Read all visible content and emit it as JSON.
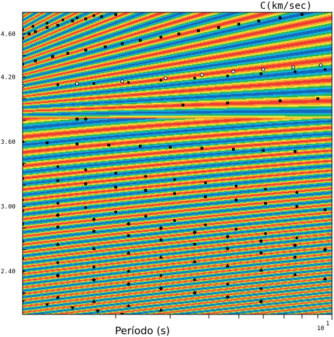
{
  "chart_data": {
    "type": "heatmap",
    "title": "",
    "xlabel": "Período (s)",
    "ylabel": "C(km/sec)",
    "x_scale": "log",
    "xlim": [
      1,
      10
    ],
    "x_tick_labels": [
      {
        "value": 10,
        "label": "10",
        "exponent": "1"
      }
    ],
    "ylim": [
      2.0,
      4.8
    ],
    "y_ticks": [
      2.4,
      3.0,
      3.6,
      4.2,
      4.6
    ],
    "y_tick_labels": [
      "2.40",
      "3.00",
      "3.60",
      "4.20",
      "4.60"
    ],
    "grid": false,
    "colors": {
      "red": "#f03a32",
      "orange": "#f59a2a",
      "yellow": "#f0e640",
      "green": "#27b44b",
      "cyan": "#13b5e8",
      "blue": "#1469b8"
    },
    "marker_series": [
      {
        "marker": "square",
        "points": [
          [
            1.0,
            4.56
          ],
          [
            1.05,
            4.6
          ],
          [
            1.1,
            4.62
          ],
          [
            1.2,
            4.66
          ],
          [
            1.3,
            4.68
          ],
          [
            1.45,
            4.72
          ],
          [
            1.6,
            4.74
          ],
          [
            1.8,
            4.76
          ],
          [
            2.0,
            4.78
          ],
          [
            1.0,
            4.32
          ],
          [
            1.1,
            4.35
          ],
          [
            1.25,
            4.39
          ],
          [
            1.4,
            4.42
          ],
          [
            1.6,
            4.45
          ],
          [
            1.85,
            4.48
          ],
          [
            2.1,
            4.51
          ],
          [
            2.4,
            4.54
          ],
          [
            2.8,
            4.57
          ],
          [
            3.2,
            4.6
          ],
          [
            3.7,
            4.63
          ],
          [
            4.3,
            4.66
          ],
          [
            5.0,
            4.69
          ],
          [
            5.8,
            4.72
          ],
          [
            6.8,
            4.75
          ],
          [
            8.0,
            4.78
          ],
          [
            3.3,
            3.94
          ],
          [
            4.6,
            3.96
          ],
          [
            6.8,
            3.98
          ],
          [
            9.0,
            4.0
          ],
          [
            1.0,
            3.6
          ],
          [
            1.2,
            3.59
          ],
          [
            1.5,
            3.58
          ],
          [
            1.9,
            3.57
          ],
          [
            2.4,
            3.56
          ],
          [
            3.0,
            3.55
          ],
          [
            3.8,
            3.54
          ],
          [
            4.8,
            3.53
          ],
          [
            6.0,
            3.52
          ],
          [
            7.6,
            3.51
          ],
          [
            1.0,
            3.26
          ],
          [
            1.3,
            3.24
          ],
          [
            1.6,
            3.21
          ],
          [
            2.0,
            3.18
          ],
          [
            2.5,
            3.15
          ],
          [
            3.1,
            3.12
          ],
          [
            3.9,
            3.09
          ],
          [
            4.9,
            3.06
          ],
          [
            6.1,
            3.03
          ],
          [
            7.7,
            3.0
          ],
          [
            9.5,
            2.97
          ],
          [
            1.0,
            2.84
          ],
          [
            1.3,
            2.81
          ],
          [
            1.7,
            2.77
          ],
          [
            2.2,
            2.73
          ],
          [
            2.8,
            2.69
          ],
          [
            3.6,
            2.65
          ],
          [
            4.6,
            2.61
          ],
          [
            5.9,
            2.57
          ],
          [
            7.6,
            2.53
          ]
        ]
      },
      {
        "marker": "circle",
        "points": [
          [
            1.0,
            4.64
          ],
          [
            1.08,
            4.67
          ],
          [
            1.2,
            4.7
          ],
          [
            1.35,
            4.73
          ],
          [
            1.5,
            4.75
          ],
          [
            1.7,
            4.77
          ],
          [
            1.0,
            4.12
          ],
          [
            1.3,
            4.13
          ],
          [
            1.7,
            4.14
          ],
          [
            2.2,
            4.15
          ],
          [
            2.8,
            4.17
          ],
          [
            3.6,
            4.19
          ],
          [
            4.6,
            4.21
          ],
          [
            5.9,
            4.23
          ],
          [
            7.6,
            4.25
          ],
          [
            9.5,
            4.27
          ],
          [
            1.0,
            3.39
          ],
          [
            1.3,
            3.37
          ],
          [
            1.6,
            3.34
          ],
          [
            2.0,
            3.31
          ],
          [
            2.5,
            3.28
          ],
          [
            3.1,
            3.25
          ],
          [
            3.9,
            3.22
          ],
          [
            4.9,
            3.19
          ],
          [
            6.1,
            3.16
          ],
          [
            7.7,
            3.13
          ],
          [
            1.0,
            3.06
          ],
          [
            1.3,
            3.03
          ],
          [
            1.6,
            2.99
          ],
          [
            2.0,
            2.95
          ],
          [
            2.5,
            2.91
          ],
          [
            3.1,
            2.87
          ],
          [
            3.9,
            2.83
          ],
          [
            4.9,
            2.79
          ],
          [
            6.1,
            2.75
          ],
          [
            7.7,
            2.71
          ],
          [
            1.0,
            2.52
          ],
          [
            1.3,
            2.48
          ],
          [
            1.7,
            2.44
          ],
          [
            2.2,
            2.4
          ],
          [
            2.8,
            2.36
          ],
          [
            3.6,
            2.32
          ],
          [
            4.6,
            2.28
          ],
          [
            5.9,
            2.24
          ]
        ]
      },
      {
        "marker": "diamond",
        "points": [
          [
            1.5,
            3.81
          ],
          [
            1.6,
            3.81
          ],
          [
            1.0,
            2.96
          ],
          [
            1.3,
            2.92
          ],
          [
            1.7,
            2.88
          ],
          [
            2.2,
            2.84
          ],
          [
            2.8,
            2.8
          ],
          [
            3.6,
            2.76
          ],
          [
            4.6,
            2.72
          ],
          [
            5.9,
            2.68
          ],
          [
            7.6,
            2.64
          ],
          [
            9.5,
            2.6
          ],
          [
            1.0,
            2.4
          ],
          [
            1.3,
            2.36
          ],
          [
            1.7,
            2.32
          ],
          [
            2.2,
            2.28
          ],
          [
            2.8,
            2.24
          ],
          [
            3.6,
            2.2
          ],
          [
            4.6,
            2.16
          ],
          [
            5.9,
            2.12
          ]
        ]
      },
      {
        "marker": "triangle",
        "points": [
          [
            1.0,
            2.68
          ],
          [
            1.3,
            2.65
          ],
          [
            1.7,
            2.61
          ],
          [
            2.2,
            2.57
          ],
          [
            2.8,
            2.53
          ],
          [
            3.6,
            2.49
          ],
          [
            4.6,
            2.45
          ],
          [
            5.9,
            2.41
          ],
          [
            7.6,
            2.37
          ],
          [
            9.5,
            2.33
          ],
          [
            1.0,
            2.2
          ],
          [
            1.3,
            2.16
          ],
          [
            1.7,
            2.12
          ],
          [
            2.2,
            2.08
          ],
          [
            2.8,
            2.04
          ]
        ]
      },
      {
        "marker": "open-circle",
        "points": [
          [
            1.0,
            4.12
          ],
          [
            1.5,
            4.14
          ],
          [
            2.1,
            4.16
          ],
          [
            2.9,
            4.19
          ],
          [
            3.8,
            4.22
          ],
          [
            4.8,
            4.25
          ],
          [
            6.0,
            4.27
          ],
          [
            7.5,
            4.29
          ],
          [
            9.2,
            4.31
          ]
        ]
      },
      {
        "marker": "inverted-triangle",
        "points": [
          [
            1.0,
            2.12
          ],
          [
            1.2,
            2.09
          ],
          [
            1.45,
            2.06
          ],
          [
            1.75,
            2.03
          ],
          [
            2.1,
            2.0
          ]
        ]
      }
    ]
  }
}
